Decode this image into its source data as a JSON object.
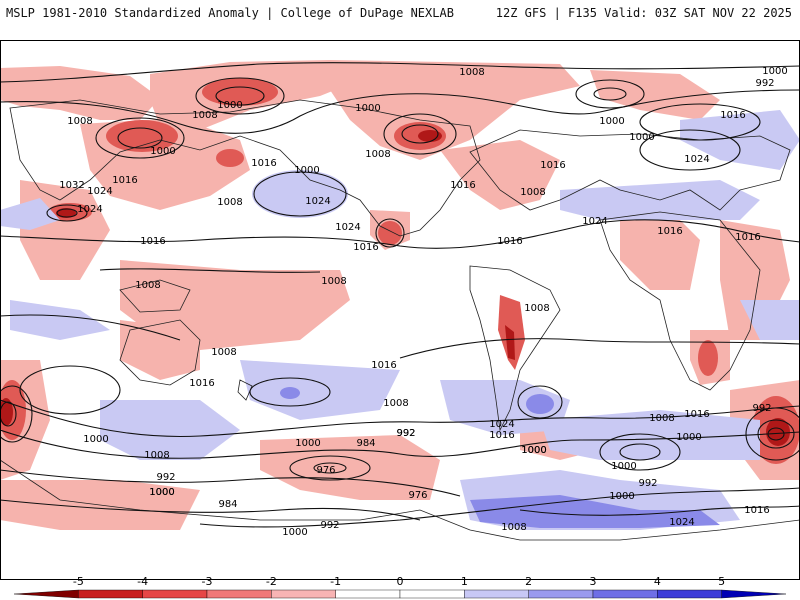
{
  "header": {
    "left": "MSLP 1981-2010 Standardized Anomaly | College of DuPage NEXLAB",
    "right": "12Z GFS | F135 Valid: 03Z SAT NOV 22 2025"
  },
  "map": {
    "type": "global-cylindrical",
    "field": "MSLP standardized anomaly (shaded) + MSLP isobars (contours, hPa)",
    "isobar_labels": [
      "1008",
      "1000",
      "992",
      "1016",
      "1000",
      "1008",
      "1000",
      "1008",
      "1000",
      "1000",
      "1000",
      "1016",
      "1032",
      "1024",
      "1024",
      "1016",
      "1000",
      "1016",
      "1008",
      "1024",
      "1024",
      "1016",
      "1008",
      "1016",
      "1008",
      "1016",
      "1024",
      "1024",
      "1016",
      "1016",
      "1008",
      "1008",
      "1008",
      "1016",
      "1016",
      "1016",
      "1008",
      "1000",
      "1000",
      "992",
      "1008",
      "992",
      "1000",
      "984",
      "992",
      "976",
      "984",
      "976",
      "1008",
      "1000",
      "1024",
      "1016",
      "1000",
      "1008",
      "992",
      "1008",
      "1000",
      "1000",
      "1016",
      "1024",
      "1016",
      "992",
      "1000",
      "1000",
      "992",
      "1000"
    ]
  },
  "colorbar": {
    "tick_labels": [
      "-5",
      "-4",
      "-3",
      "-2",
      "-1",
      "0",
      "1",
      "2",
      "3",
      "4",
      "5"
    ],
    "colors": [
      "#7f0000",
      "#c81e1e",
      "#e64646",
      "#f07878",
      "#f8b4b4",
      "#ffffff",
      "#ffffff",
      "#c8c8f5",
      "#9a9aee",
      "#6e6ee6",
      "#3c3cd8",
      "#0000b4"
    ]
  }
}
